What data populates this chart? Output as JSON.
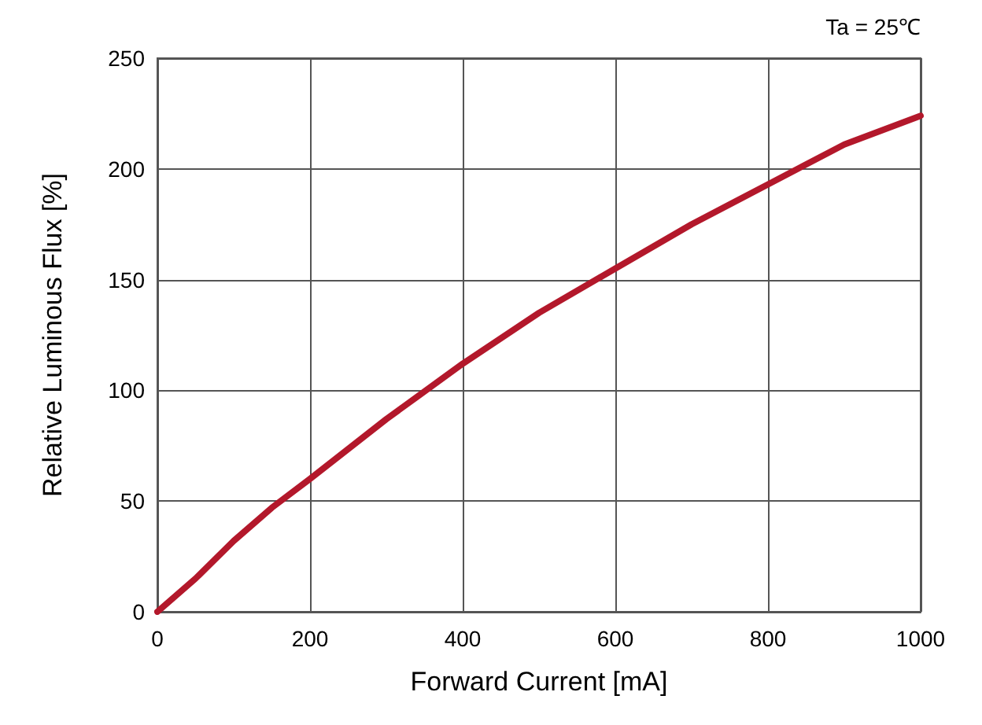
{
  "chart_data": {
    "type": "line",
    "xlabel": "Forward Current [mA]",
    "ylabel": "Relative Luminous Flux [%]",
    "annotations": [
      "Ta = 25℃"
    ],
    "x": [
      0,
      50,
      100,
      150,
      200,
      300,
      400,
      500,
      600,
      700,
      800,
      900,
      1000
    ],
    "series": [
      {
        "color": "#b3182b",
        "values": [
          0,
          15,
          32,
          47,
          60,
          87,
          112,
          135,
          155,
          175,
          193,
          211,
          224
        ]
      }
    ],
    "xlim": [
      0,
      1000
    ],
    "xticks": [
      0,
      200,
      400,
      600,
      800,
      1000
    ],
    "ylim": [
      0,
      250
    ],
    "yticks": [
      0,
      50,
      100,
      150,
      200,
      250
    ],
    "grid": true,
    "marker": "none",
    "line_style": "solid"
  }
}
